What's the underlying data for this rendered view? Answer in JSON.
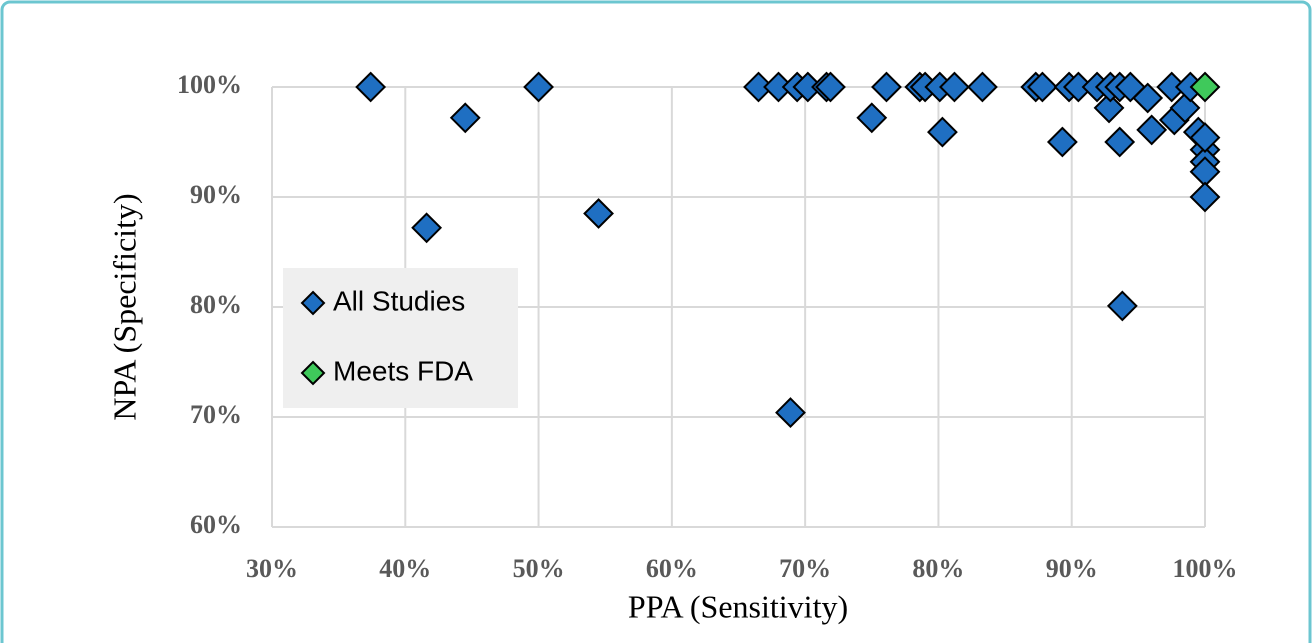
{
  "chart_data": {
    "type": "scatter",
    "x_label": "PPA (Sensitivity)",
    "y_label": "NPA (Specificity)",
    "xlim": [
      30,
      100
    ],
    "ylim": [
      60,
      100
    ],
    "xticks": [
      {
        "value": 30,
        "label": "30%"
      },
      {
        "value": 40,
        "label": "40%"
      },
      {
        "value": 50,
        "label": "50%"
      },
      {
        "value": 60,
        "label": "60%"
      },
      {
        "value": 70,
        "label": "70%"
      },
      {
        "value": 80,
        "label": "80%"
      },
      {
        "value": 90,
        "label": "90%"
      },
      {
        "value": 100,
        "label": "100%"
      }
    ],
    "yticks": [
      {
        "value": 60,
        "label": "60%"
      },
      {
        "value": 70,
        "label": "70%"
      },
      {
        "value": 80,
        "label": "80%"
      },
      {
        "value": 90,
        "label": "90%"
      },
      {
        "value": 100,
        "label": "100%"
      }
    ],
    "grid": true,
    "legend": "center left",
    "series": [
      {
        "name": "All Studies",
        "color": "#1f6fc2",
        "x": [
          37.4,
          41.6,
          44.5,
          50,
          54.5,
          66.5,
          68,
          68.9,
          69.4,
          70.2,
          71.6,
          71.9,
          75,
          76.1,
          78.6,
          79,
          80.1,
          80.3,
          81.2,
          83.3,
          87.3,
          87.8,
          89.3,
          89.8,
          90.5,
          91.9,
          92.8,
          92.9,
          93.6,
          93.8,
          93.6,
          94.4,
          95.7,
          96,
          97.5,
          97.7,
          98.5,
          98.9,
          99.5,
          100,
          100,
          100,
          100,
          100
        ],
        "y": [
          100,
          87.2,
          97.2,
          100,
          88.5,
          100,
          100,
          70.4,
          100,
          100,
          100,
          100,
          97.2,
          100,
          100,
          100,
          100,
          95.9,
          100,
          100,
          100,
          100,
          95,
          100,
          100,
          100,
          98.1,
          100,
          100,
          80.1,
          95,
          100,
          99,
          96.1,
          100,
          97,
          98.1,
          100,
          95.9,
          94.3,
          93.2,
          92.3,
          90,
          95.4
        ]
      },
      {
        "name": "Meets FDA",
        "color": "#3fc95b",
        "x": [
          100
        ],
        "y": [
          100
        ]
      }
    ]
  }
}
